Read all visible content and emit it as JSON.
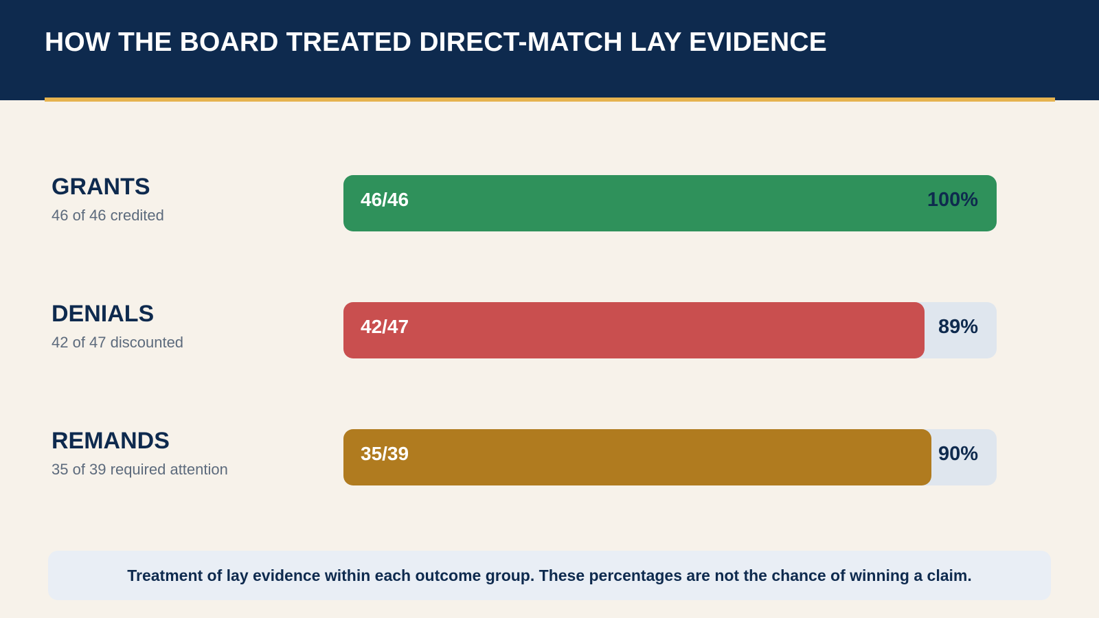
{
  "title": "HOW THE BOARD TREATED DIRECT-MATCH LAY EVIDENCE",
  "footnote": "Treatment of lay evidence within each outcome group. These percentages are not the chance of winning a claim.",
  "colors": {
    "header_bg": "#0e2a4e",
    "accent": "#e6b34f",
    "grants": "#2f915b",
    "denials": "#c94f4f",
    "remands": "#b07b1f",
    "track": "#dfe6ee"
  },
  "chart_data": {
    "type": "bar",
    "orientation": "horizontal",
    "title": "HOW THE BOARD TREATED DIRECT-MATCH LAY EVIDENCE",
    "xlim": [
      0,
      100
    ],
    "categories": [
      "GRANTS",
      "DENIALS",
      "REMANDS"
    ],
    "rows": [
      {
        "label": "GRANTS",
        "subtitle": "46 of 46 credited",
        "count_label": "46/46",
        "numerator": 46,
        "denominator": 46,
        "value": 100,
        "value_label": "100%",
        "color": "#2f915b"
      },
      {
        "label": "DENIALS",
        "subtitle": "42 of 47 discounted",
        "count_label": "42/47",
        "numerator": 42,
        "denominator": 47,
        "value": 89,
        "value_label": "89%",
        "color": "#c94f4f"
      },
      {
        "label": "REMANDS",
        "subtitle": "35 of 39 required attention",
        "count_label": "35/39",
        "numerator": 35,
        "denominator": 39,
        "value": 90,
        "value_label": "90%",
        "color": "#b07b1f"
      }
    ]
  }
}
